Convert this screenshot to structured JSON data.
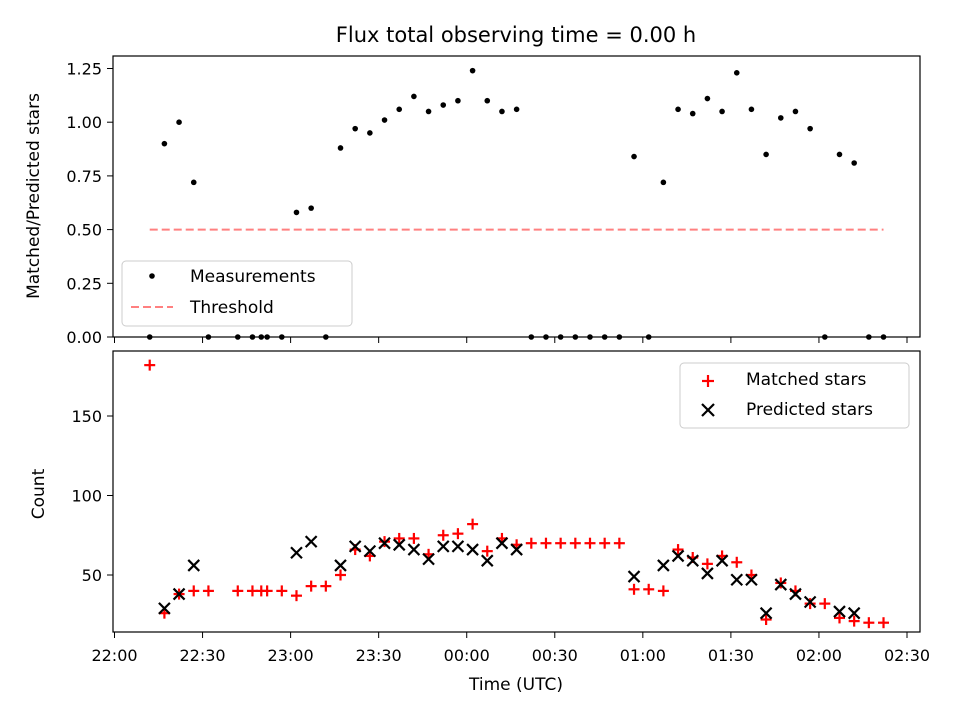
{
  "chart_data": [
    {
      "type": "scatter",
      "title": "Flux total observing time = 0.00 h",
      "xlabel": "",
      "ylabel": "Matched/Predicted stars",
      "ylim": [
        0,
        1.3
      ],
      "yticks": [
        0.0,
        0.25,
        0.5,
        0.75,
        1.0,
        1.25
      ],
      "ytick_labels": [
        "0.00",
        "0.25",
        "0.50",
        "0.75",
        "1.00",
        "1.25"
      ],
      "legend_position": "lower-left",
      "series": [
        {
          "name": "Measurements",
          "color": "#000000",
          "marker": "dot",
          "points": [
            [
              "22:12",
              0
            ],
            [
              "22:17",
              0.9
            ],
            [
              "22:22",
              1.0
            ],
            [
              "22:27",
              0.72
            ],
            [
              "22:32",
              0
            ],
            [
              "22:42",
              0
            ],
            [
              "22:47",
              0
            ],
            [
              "22:50",
              0
            ],
            [
              "22:52",
              0
            ],
            [
              "22:57",
              0
            ],
            [
              "23:02",
              0.58
            ],
            [
              "23:07",
              0.6
            ],
            [
              "23:12",
              0
            ],
            [
              "23:17",
              0.88
            ],
            [
              "23:22",
              0.97
            ],
            [
              "23:27",
              0.95
            ],
            [
              "23:32",
              1.01
            ],
            [
              "23:37",
              1.06
            ],
            [
              "23:42",
              1.12
            ],
            [
              "23:47",
              1.05
            ],
            [
              "23:52",
              1.08
            ],
            [
              "23:57",
              1.1
            ],
            [
              "00:02",
              1.24
            ],
            [
              "00:07",
              1.1
            ],
            [
              "00:12",
              1.05
            ],
            [
              "00:17",
              1.06
            ],
            [
              "00:22",
              0
            ],
            [
              "00:27",
              0
            ],
            [
              "00:32",
              0
            ],
            [
              "00:37",
              0
            ],
            [
              "00:42",
              0
            ],
            [
              "00:47",
              0
            ],
            [
              "00:52",
              0
            ],
            [
              "00:57",
              0.84
            ],
            [
              "01:02",
              0
            ],
            [
              "01:07",
              0.72
            ],
            [
              "01:12",
              1.06
            ],
            [
              "01:17",
              1.04
            ],
            [
              "01:22",
              1.11
            ],
            [
              "01:27",
              1.05
            ],
            [
              "01:32",
              1.23
            ],
            [
              "01:37",
              1.06
            ],
            [
              "01:42",
              0.85
            ],
            [
              "01:47",
              1.02
            ],
            [
              "01:52",
              1.05
            ],
            [
              "01:57",
              0.97
            ],
            [
              "02:02",
              0
            ],
            [
              "02:07",
              0.85
            ],
            [
              "02:12",
              0.81
            ],
            [
              "02:17",
              0
            ],
            [
              "02:22",
              0
            ]
          ]
        },
        {
          "name": "Threshold",
          "color": "#ff8080",
          "style": "dashed",
          "points": [
            [
              "22:12",
              0.5
            ],
            [
              "02:22",
              0.5
            ]
          ]
        }
      ]
    },
    {
      "type": "scatter",
      "xlabel": "Time (UTC)",
      "ylabel": "Count",
      "ylim": [
        14,
        191
      ],
      "yticks": [
        50,
        100,
        150
      ],
      "ytick_labels": [
        "50",
        "100",
        "150"
      ],
      "xlim": [
        "22:00",
        "02:35"
      ],
      "xticks": [
        "22:00",
        "22:30",
        "23:00",
        "23:30",
        "00:00",
        "00:30",
        "01:00",
        "01:30",
        "02:00",
        "02:30"
      ],
      "xtick_labels": [
        "22:00",
        "22:30",
        "23:00",
        "23:30",
        "00:00",
        "00:30",
        "01:00",
        "01:30",
        "02:00",
        "02:30"
      ],
      "legend_position": "top-right",
      "series": [
        {
          "name": "Matched stars",
          "color": "#ff0000",
          "marker": "plus",
          "points": [
            [
              "22:12",
              182
            ],
            [
              "22:17",
              26
            ],
            [
              "22:22",
              38
            ],
            [
              "22:27",
              40
            ],
            [
              "22:32",
              40
            ],
            [
              "22:42",
              40
            ],
            [
              "22:47",
              40
            ],
            [
              "22:50",
              40
            ],
            [
              "22:52",
              40
            ],
            [
              "22:57",
              40
            ],
            [
              "23:02",
              37
            ],
            [
              "23:07",
              43
            ],
            [
              "23:12",
              43
            ],
            [
              "23:17",
              50
            ],
            [
              "23:22",
              66
            ],
            [
              "23:27",
              62
            ],
            [
              "23:32",
              71
            ],
            [
              "23:37",
              73
            ],
            [
              "23:42",
              73
            ],
            [
              "23:47",
              63
            ],
            [
              "23:52",
              75
            ],
            [
              "23:57",
              76
            ],
            [
              "00:02",
              82
            ],
            [
              "00:07",
              65
            ],
            [
              "00:12",
              73
            ],
            [
              "00:17",
              69
            ],
            [
              "00:22",
              70
            ],
            [
              "00:27",
              70
            ],
            [
              "00:32",
              70
            ],
            [
              "00:37",
              70
            ],
            [
              "00:42",
              70
            ],
            [
              "00:47",
              70
            ],
            [
              "00:52",
              70
            ],
            [
              "00:57",
              41
            ],
            [
              "01:02",
              41
            ],
            [
              "01:07",
              40
            ],
            [
              "01:12",
              66
            ],
            [
              "01:17",
              61
            ],
            [
              "01:22",
              57
            ],
            [
              "01:27",
              62
            ],
            [
              "01:32",
              58
            ],
            [
              "01:37",
              50
            ],
            [
              "01:42",
              22
            ],
            [
              "01:47",
              45
            ],
            [
              "01:52",
              40
            ],
            [
              "01:57",
              32
            ],
            [
              "02:02",
              32
            ],
            [
              "02:07",
              23
            ],
            [
              "02:12",
              21
            ],
            [
              "02:17",
              20
            ],
            [
              "02:22",
              20
            ]
          ]
        },
        {
          "name": "Predicted stars",
          "color": "#000000",
          "marker": "x",
          "points": [
            [
              "22:17",
              29
            ],
            [
              "22:22",
              38
            ],
            [
              "22:27",
              56
            ],
            [
              "23:02",
              64
            ],
            [
              "23:07",
              71
            ],
            [
              "23:17",
              56
            ],
            [
              "23:22",
              68
            ],
            [
              "23:27",
              65
            ],
            [
              "23:32",
              70
            ],
            [
              "23:37",
              69
            ],
            [
              "23:42",
              66
            ],
            [
              "23:47",
              60
            ],
            [
              "23:52",
              68
            ],
            [
              "23:57",
              68
            ],
            [
              "00:02",
              66
            ],
            [
              "00:07",
              59
            ],
            [
              "00:12",
              70
            ],
            [
              "00:17",
              66
            ],
            [
              "00:57",
              49
            ],
            [
              "01:07",
              56
            ],
            [
              "01:12",
              62
            ],
            [
              "01:17",
              59
            ],
            [
              "01:22",
              51
            ],
            [
              "01:27",
              59
            ],
            [
              "01:32",
              47
            ],
            [
              "01:37",
              47
            ],
            [
              "01:42",
              26
            ],
            [
              "01:47",
              44
            ],
            [
              "01:52",
              38
            ],
            [
              "01:57",
              33
            ],
            [
              "02:07",
              27
            ],
            [
              "02:12",
              26
            ]
          ]
        }
      ]
    }
  ]
}
